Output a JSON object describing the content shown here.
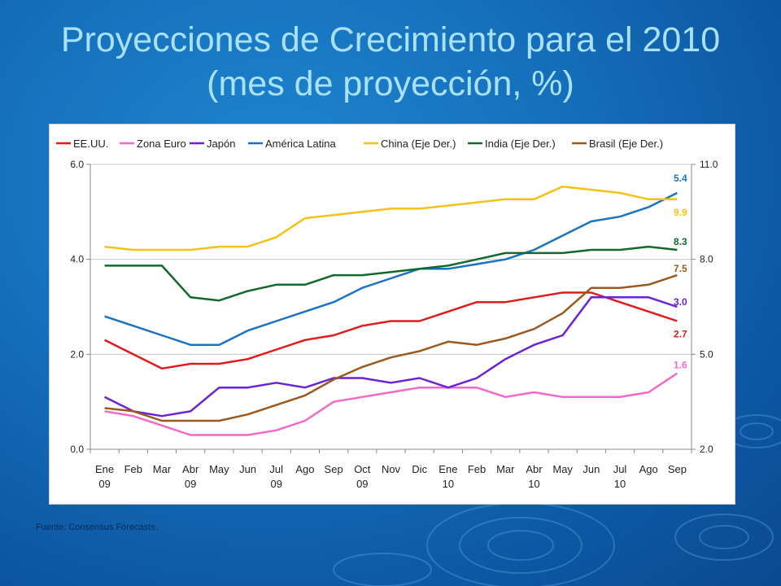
{
  "slide": {
    "title_line1": "Proyecciones de Crecimiento para el 2010",
    "title_line2": "(mes de proyección, %)",
    "source": "Fuente: Consensus Forecasts."
  },
  "chart_data": {
    "type": "line",
    "categories": [
      [
        "Ene",
        "09"
      ],
      [
        "Feb",
        ""
      ],
      [
        "Mar",
        ""
      ],
      [
        "Abr",
        "09"
      ],
      [
        "May",
        ""
      ],
      [
        "Jun",
        ""
      ],
      [
        "Jul",
        "09"
      ],
      [
        "Ago",
        ""
      ],
      [
        "Sep",
        ""
      ],
      [
        "Oct",
        "09"
      ],
      [
        "Nov",
        ""
      ],
      [
        "Dic",
        ""
      ],
      [
        "Ene",
        "10"
      ],
      [
        "Feb",
        ""
      ],
      [
        "Mar",
        ""
      ],
      [
        "Abr",
        "10"
      ],
      [
        "May",
        ""
      ],
      [
        "Jun",
        ""
      ],
      [
        "Jul",
        "10"
      ],
      [
        "Ago",
        ""
      ],
      [
        "Sep",
        ""
      ]
    ],
    "y_left": {
      "ylim": [
        0,
        6
      ],
      "ticks": [
        "0.0",
        "2.0",
        "4.0",
        "6.0"
      ]
    },
    "y_right": {
      "ylim": [
        2,
        11
      ],
      "ticks": [
        "2.0",
        "5.0",
        "8.0",
        "11.0"
      ]
    },
    "grid": true,
    "legend_position": "top",
    "series": [
      {
        "name": "EE.UU.",
        "axis": "left",
        "color": "#e01b1b",
        "end_label": "2.7",
        "values": [
          2.3,
          2.0,
          1.7,
          1.8,
          1.8,
          1.9,
          2.1,
          2.3,
          2.4,
          2.6,
          2.7,
          2.7,
          2.9,
          3.1,
          3.1,
          3.2,
          3.3,
          3.3,
          3.1,
          2.9,
          2.7
        ]
      },
      {
        "name": "Zona Euro",
        "axis": "left",
        "color": "#f06ac8",
        "end_label": "1.6",
        "values": [
          0.8,
          0.7,
          0.5,
          0.3,
          0.3,
          0.3,
          0.4,
          0.6,
          1.0,
          1.1,
          1.2,
          1.3,
          1.3,
          1.3,
          1.1,
          1.2,
          1.1,
          1.1,
          1.1,
          1.2,
          1.6
        ]
      },
      {
        "name": "Japón",
        "axis": "left",
        "color": "#6a22d6",
        "end_label": "3.0",
        "values": [
          1.1,
          0.8,
          0.7,
          0.8,
          1.3,
          1.3,
          1.4,
          1.3,
          1.5,
          1.5,
          1.4,
          1.5,
          1.3,
          1.5,
          1.9,
          2.2,
          2.4,
          3.2,
          3.2,
          3.2,
          3.0
        ]
      },
      {
        "name": "América Latina",
        "axis": "left",
        "color": "#1a73c2",
        "end_label": "5.4",
        "values": [
          2.8,
          2.6,
          2.4,
          2.2,
          2.2,
          2.5,
          2.7,
          2.9,
          3.1,
          3.4,
          3.6,
          3.8,
          3.8,
          3.9,
          4.0,
          4.2,
          4.5,
          4.8,
          4.9,
          5.1,
          5.4
        ]
      },
      {
        "name": "China (Eje Der.)",
        "axis": "right",
        "color": "#f5c21b",
        "end_label": "9.9",
        "values": [
          8.4,
          8.3,
          8.3,
          8.3,
          8.4,
          8.4,
          8.7,
          9.3,
          9.4,
          9.5,
          9.6,
          9.6,
          9.7,
          9.8,
          9.9,
          9.9,
          10.3,
          10.2,
          10.1,
          9.9,
          9.9
        ]
      },
      {
        "name": "India (Eje Der.)",
        "axis": "right",
        "color": "#12692a",
        "end_label": "8.3",
        "values": [
          7.8,
          7.8,
          7.8,
          6.8,
          6.7,
          7.0,
          7.2,
          7.2,
          7.5,
          7.5,
          7.6,
          7.7,
          7.8,
          8.0,
          8.2,
          8.2,
          8.2,
          8.3,
          8.3,
          8.4,
          8.3
        ]
      },
      {
        "name": "Brasil (Eje Der.)",
        "axis": "right",
        "color": "#9a5a1e",
        "end_label": "7.5",
        "values": [
          3.3,
          3.2,
          2.9,
          2.9,
          2.9,
          3.1,
          3.4,
          3.7,
          4.2,
          4.6,
          4.9,
          5.1,
          5.4,
          5.3,
          5.5,
          5.8,
          6.3,
          7.1,
          7.1,
          7.2,
          7.5
        ]
      }
    ]
  }
}
